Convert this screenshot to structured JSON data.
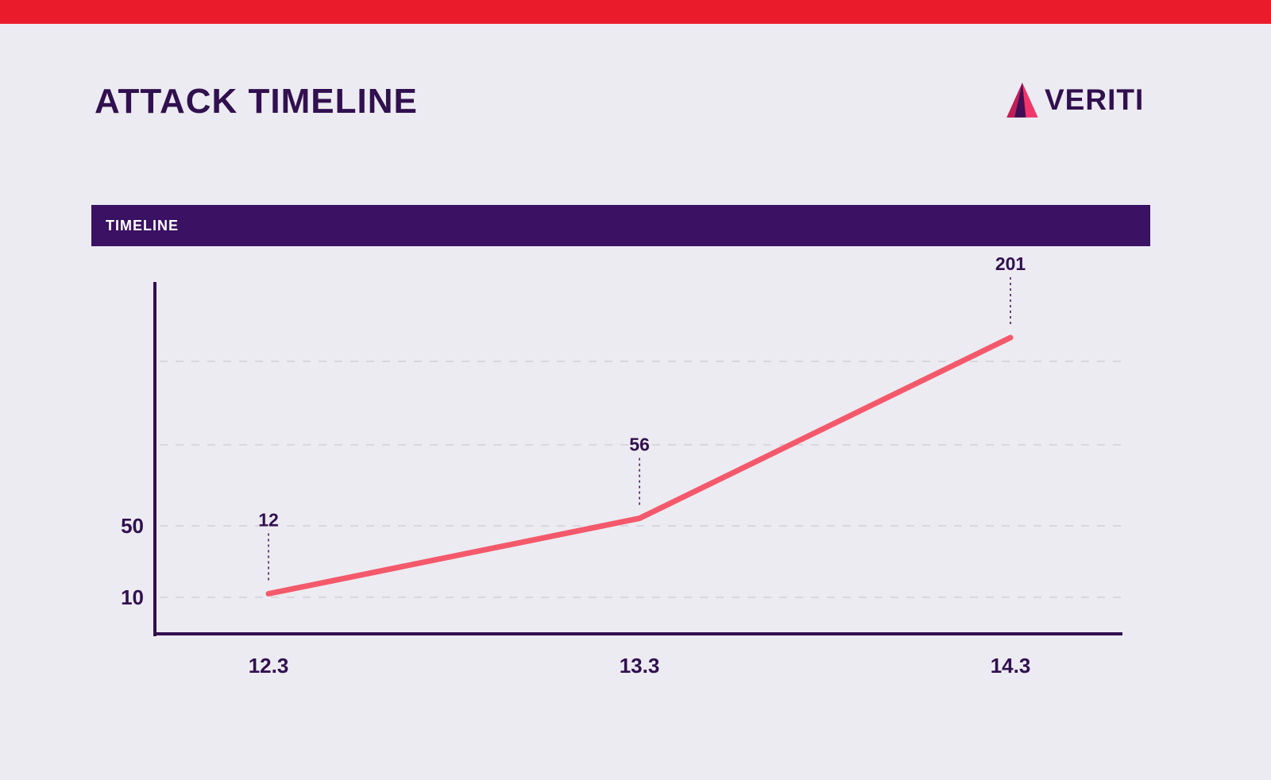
{
  "page": {
    "title": "ATTACK TIMELINE",
    "brand": "VERITI",
    "section_header": "TIMELINE"
  },
  "colors": {
    "top-bar": "#EA1C2C",
    "background": "#ECEBF1",
    "banner": "#3A1163",
    "banner-text": "#FFFFFF",
    "title-text": "#31104F",
    "axis": "#31104F",
    "gridline": "#D9D7DE",
    "line": "#F4596B",
    "logo-dark": "#3E1055",
    "logo-pink": "#F0366B",
    "logo-magenta": "#C21E56"
  },
  "chart_data": {
    "type": "line",
    "title": "TIMELINE",
    "categories": [
      "12.3",
      "13.3",
      "14.3"
    ],
    "values": [
      12,
      56,
      201
    ],
    "point_labels": [
      "12",
      "56",
      "201"
    ],
    "yticks": [
      {
        "label": "50",
        "value": 50
      },
      {
        "label": "10",
        "value": 10
      }
    ],
    "xlabel": "",
    "ylabel": "",
    "ylim": [
      0,
      220
    ],
    "legend": "none",
    "grid": "horizontal-dashed",
    "line_color": "#F4596B"
  }
}
